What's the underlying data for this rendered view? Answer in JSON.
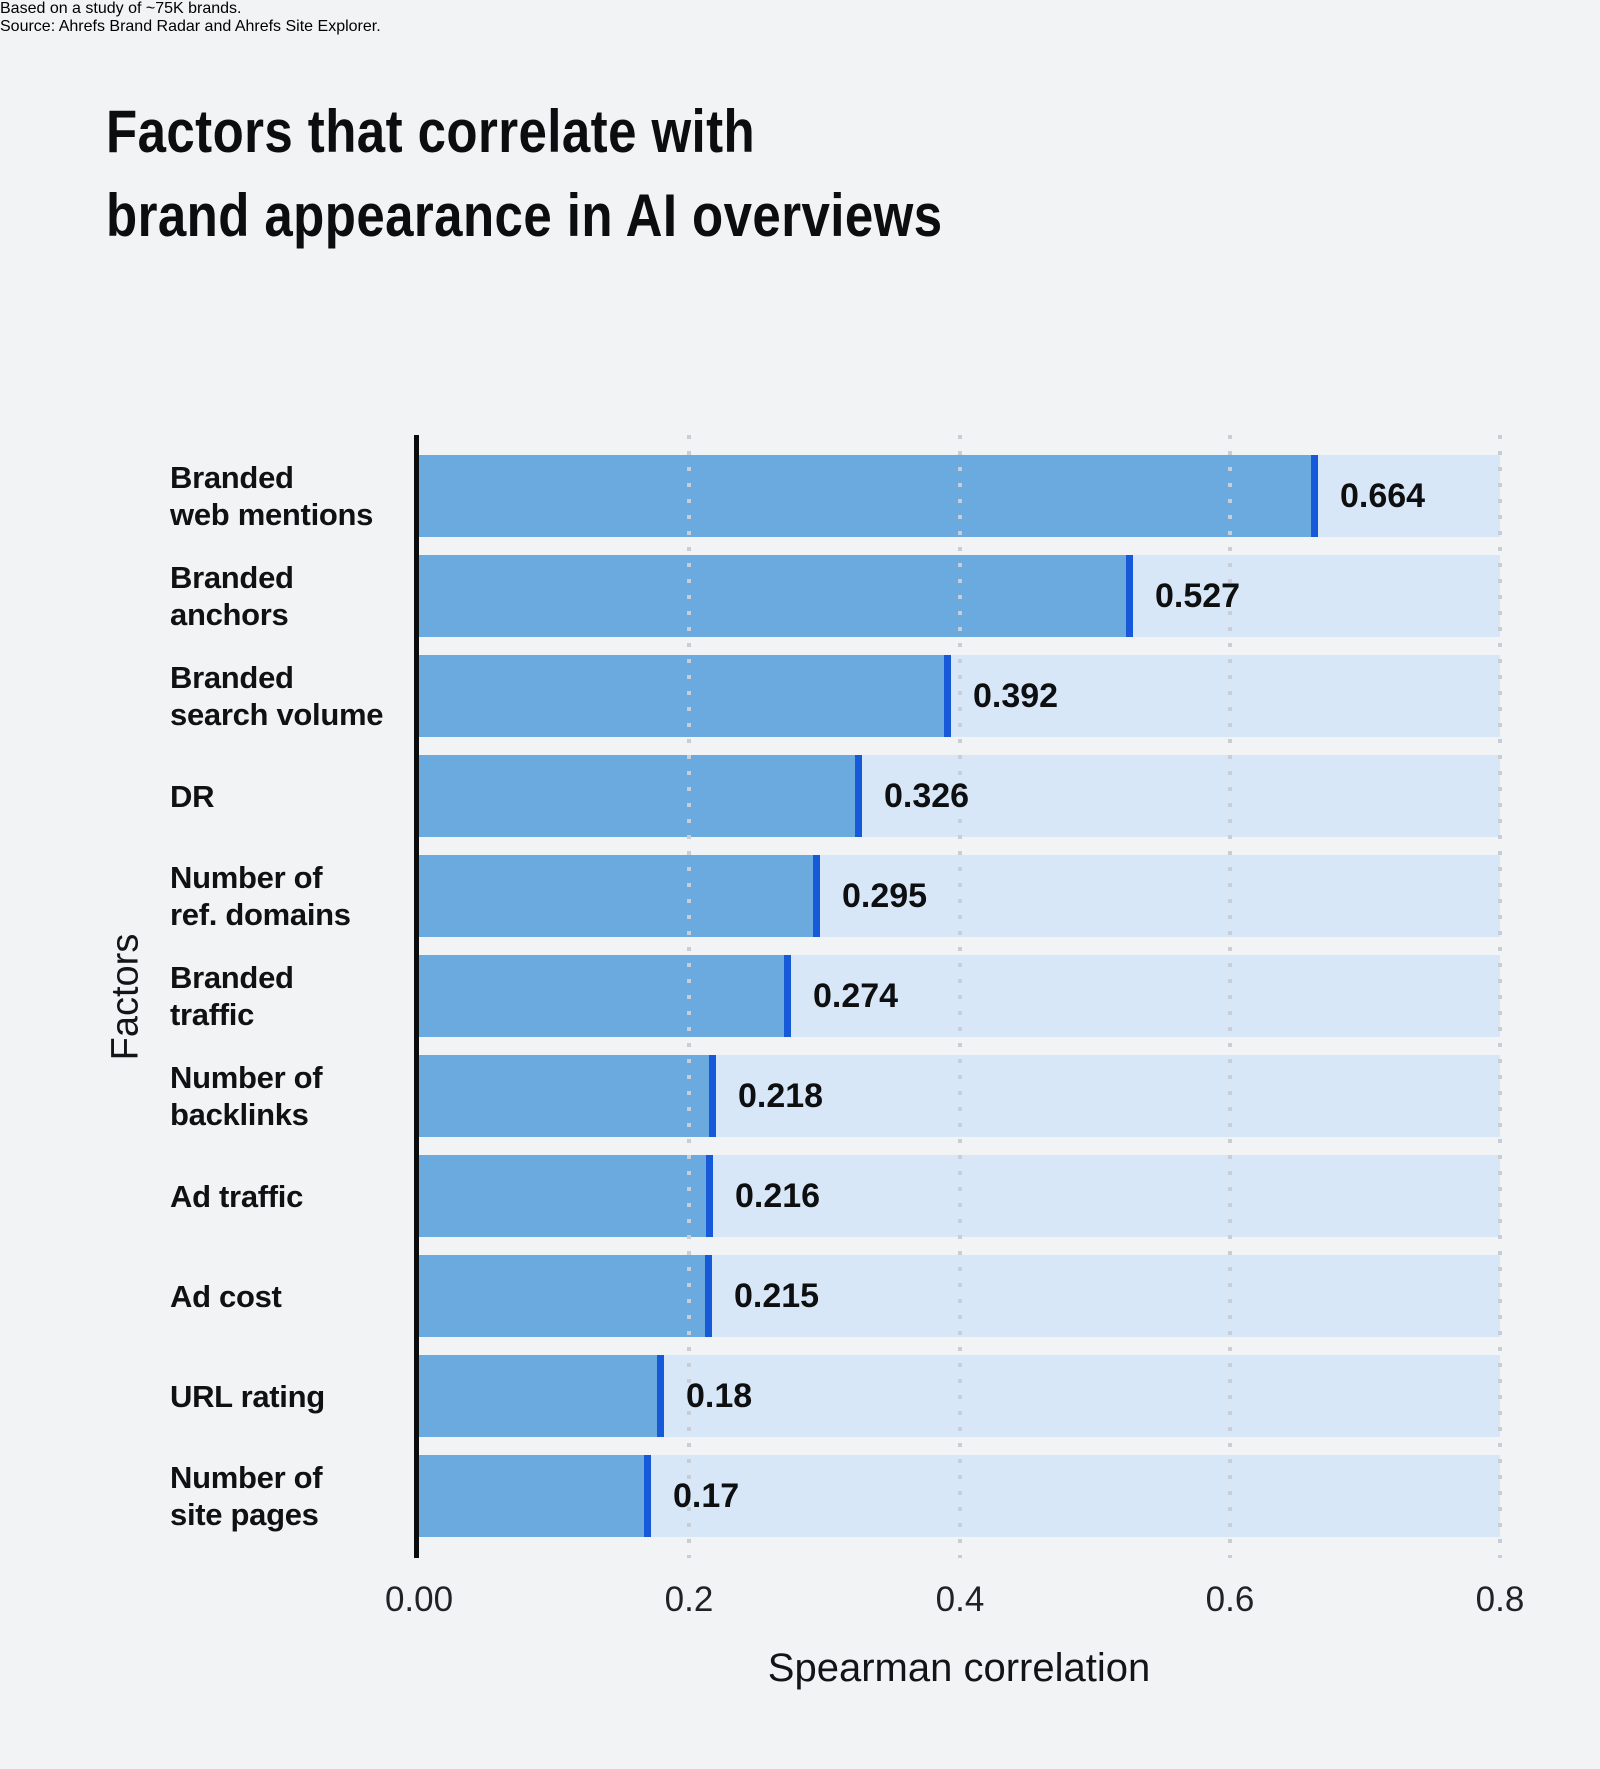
{
  "header": {
    "title_line1": "Factors that correlate with",
    "title_line2": "brand appearance in AI overviews",
    "subtitle_line1": "Based on a study of ~75K brands.",
    "subtitle_line2": "Source: Ahrefs Brand Radar and Ahrefs Site Explorer."
  },
  "chart_data": {
    "type": "bar",
    "orientation": "horizontal",
    "title": "Factors that correlate with brand appearance in AI overviews",
    "xlabel": "Spearman correlation",
    "ylabel": "Factors",
    "xlim": [
      0,
      0.8
    ],
    "grid": {
      "axis": "x",
      "style": "dotted",
      "positions": [
        0.2,
        0.4,
        0.6,
        0.8
      ]
    },
    "xticks": [
      {
        "value": 0,
        "label": "0.00"
      },
      {
        "value": 0.2,
        "label": "0.2"
      },
      {
        "value": 0.4,
        "label": "0.4"
      },
      {
        "value": 0.6,
        "label": "0.6"
      },
      {
        "value": 0.8,
        "label": "0.8"
      }
    ],
    "categories": [
      "Branded web mentions",
      "Branded anchors",
      "Branded search volume",
      "DR",
      "Number of ref. domains",
      "Branded traffic",
      "Number of backlinks",
      "Ad traffic",
      "Ad cost",
      "URL rating",
      "Number of site pages"
    ],
    "values": [
      0.664,
      0.527,
      0.392,
      0.326,
      0.295,
      0.274,
      0.218,
      0.216,
      0.215,
      0.18,
      0.17
    ],
    "bars": [
      {
        "lines": [
          "Branded",
          "web mentions"
        ],
        "value": 0.664,
        "value_label": "0.664"
      },
      {
        "lines": [
          "Branded",
          "anchors"
        ],
        "value": 0.527,
        "value_label": "0.527"
      },
      {
        "lines": [
          "Branded",
          "search volume"
        ],
        "value": 0.392,
        "value_label": "0.392"
      },
      {
        "lines": [
          "DR"
        ],
        "value": 0.326,
        "value_label": "0.326"
      },
      {
        "lines": [
          "Number of",
          "ref. domains"
        ],
        "value": 0.295,
        "value_label": "0.295"
      },
      {
        "lines": [
          "Branded",
          "traffic"
        ],
        "value": 0.274,
        "value_label": "0.274"
      },
      {
        "lines": [
          "Number of",
          "backlinks"
        ],
        "value": 0.218,
        "value_label": "0.218"
      },
      {
        "lines": [
          "Ad traffic"
        ],
        "value": 0.216,
        "value_label": "0.216"
      },
      {
        "lines": [
          "Ad cost"
        ],
        "value": 0.215,
        "value_label": "0.215"
      },
      {
        "lines": [
          "URL rating"
        ],
        "value": 0.18,
        "value_label": "0.18"
      },
      {
        "lines": [
          "Number of",
          "site pages"
        ],
        "value": 0.17,
        "value_label": "0.17"
      }
    ],
    "colors": {
      "background": "#f1f3f5",
      "bar": "#6aaade",
      "bar_edge": "#1659d9",
      "track": "#d8e7f7",
      "grid_dot": "#c9ced6",
      "title_text": "#0c0d0f",
      "subtitle_text": "#94979d",
      "label_text": "#101113"
    }
  }
}
